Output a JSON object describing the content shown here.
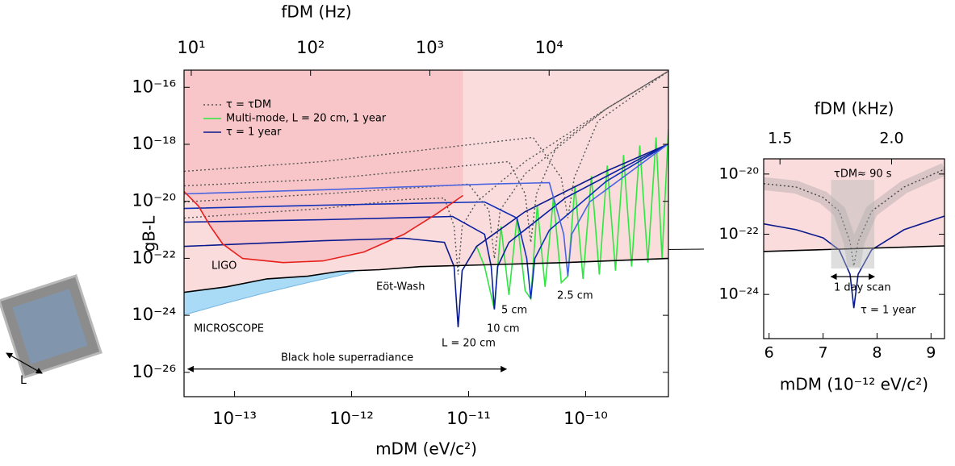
{
  "chart_data": [
    {
      "type": "line",
      "xlabel": "mDM (eV/c²)",
      "x2label": "fDM (Hz)",
      "ylabel": "gB-L",
      "xscale": "log",
      "x2scale": "log",
      "yscale": "log",
      "xlim": [
        3.7e-14,
        5.1e-10
      ],
      "xticks": [
        {
          "value": 1e-13,
          "label": "10⁻¹³"
        },
        {
          "value": 1e-12,
          "label": "10⁻¹²"
        },
        {
          "value": 1e-11,
          "label": "10⁻¹¹"
        },
        {
          "value": 1e-10,
          "label": "10⁻¹⁰"
        }
      ],
      "x2lim": [
        8.7,
        100000
      ],
      "x2ticks": [
        {
          "value": 10,
          "label": "10¹"
        },
        {
          "value": 100,
          "label": "10²"
        },
        {
          "value": 1000,
          "label": "10³"
        },
        {
          "value": 10000,
          "label": "10⁴"
        }
      ],
      "ylim": [
        1.4e-27,
        4e-16
      ],
      "yticks": [
        {
          "value": 1e-26,
          "label": "10⁻²⁶"
        },
        {
          "value": 1e-24,
          "label": "10⁻²⁴"
        },
        {
          "value": 1e-22,
          "label": "10⁻²²"
        },
        {
          "value": 1e-20,
          "label": "10⁻²⁰"
        },
        {
          "value": 1e-18,
          "label": "10⁻¹⁸"
        },
        {
          "value": 1e-16,
          "label": "10⁻¹⁶"
        }
      ],
      "legend": "upper left",
      "series": [
        {
          "name": "τ = τDM",
          "color": "#555555",
          "style": "dotted",
          "x": [
            3.7e-14,
            5.7e-13,
            2.81e-12,
            6.21e-12,
            7.52e-12,
            8.13e-12,
            8.81e-12,
            1.17e-11,
            3.04e-11,
            1.49e-10,
            5.1e-10
          ],
          "values": [
            2.6e-21,
            5.6e-21,
            1.15e-20,
            1.31e-20,
            1.34e-21,
            2.7e-23,
            1.34e-21,
            9.5e-21,
            2.48e-19,
            1.72e-17,
            3.7e-16
          ]
        },
        {
          "color": "#555555",
          "style": "dotted",
          "x": [
            3.7e-14,
            5.7e-13,
            1e-11,
            1.49e-11,
            1.66e-11,
            1.86e-11,
            3.04e-11,
            1.49e-10,
            5.1e-10
          ],
          "values": [
            9.5e-21,
            1.82e-20,
            4e-20,
            4.9e-21,
            9.9e-23,
            4.9e-21,
            9.3e-20,
            1.72e-17,
            3.7e-16
          ]
        },
        {
          "color": "#555555",
          "style": "dotted",
          "x": [
            3.7e-14,
            5.7e-13,
            2.21e-11,
            3.04e-11,
            3.4e-11,
            3.8e-11,
            5.7e-11,
            1.49e-10,
            5.1e-10
          ],
          "values": [
            3.5e-20,
            5.9e-20,
            2.48e-19,
            1.82e-20,
            3.6e-22,
            1.82e-20,
            9.1e-19,
            1.72e-17,
            3.7e-16
          ]
        },
        {
          "color": "#555555",
          "style": "dotted",
          "x": [
            3.7e-14,
            5.7e-13,
            3.56e-11,
            6.2e-11,
            7.05e-11,
            8e-11,
            1.27e-10,
            5.1e-10
          ],
          "values": [
            1.13e-19,
            2.48e-19,
            1.75e-18,
            6.7e-20,
            2.6e-21,
            6.7e-20,
            6.5e-18,
            3.7e-16
          ]
        },
        {
          "name": "Multi-mode, L = 20 cm, 1 year",
          "color": "#2ee840",
          "style": "solid",
          "x": [
            1.17e-11,
            1.37e-11,
            1.66e-11,
            1.89e-11,
            2.21e-11,
            2.59e-11,
            3.04e-11,
            3.4e-11,
            3.86e-11,
            4.5e-11,
            5.3e-11,
            6.2e-11,
            7.05e-11,
            8.1e-11,
            9.5e-11,
            1.12e-10,
            1.31e-10,
            1.53e-10,
            1.8e-10,
            2.11e-10,
            2.47e-10,
            2.9e-10,
            3.4e-10,
            4e-10,
            4.5e-10,
            5.1e-10
          ],
          "values": [
            2.6e-22,
            5.1e-23,
            1.62e-24,
            1.34e-21,
            5.2e-24,
            2.6e-21,
            7.3e-24,
            3.8e-24,
            6.9e-21,
            1e-23,
            1.31e-20,
            1.4e-23,
            2.35e-23,
            3.5e-20,
            1.9e-23,
            7.7e-20,
            2.7e-23,
            1.79e-19,
            3.7e-23,
            4.2e-19,
            5.1e-23,
            9.1e-19,
            7.1e-23,
            1.75e-18,
            9.9e-23,
            3.4e-18
          ]
        },
        {
          "name": "τ = 1 year",
          "color": "#0a1a8c",
          "style": "solid",
          "x": [
            3.73e-14,
            1.17e-13,
            5.74e-13,
            2.81e-12,
            6.21e-12,
            7.52e-12,
            8.13e-12,
            8.81e-12,
            1.17e-11,
            3.04e-11,
            1.49e-10,
            5.13e-10
          ],
          "values": [
            2.62e-22,
            3.19e-22,
            4.15e-22,
            5.05e-22,
            3.64e-22,
            5.14e-23,
            3.85e-25,
            3.71e-23,
            2.62e-22,
            4.34e-21,
            1.13e-19,
            1.04e-18
          ]
        },
        {
          "color": "#0a1fa0",
          "style": "solid",
          "x": [
            3.7e-14,
            5.7e-13,
            7.3e-12,
            1.37e-11,
            1.56e-11,
            1.66e-11,
            1.77e-11,
            2.21e-11,
            6.7e-11,
            5.1e-10
          ],
          "values": [
            1.86e-21,
            2.26e-21,
            2.93e-21,
            6.98e-22,
            5.1e-23,
            1.62e-24,
            5.1e-23,
            3.6e-22,
            1.31e-20,
            1.04e-18
          ]
        },
        {
          "color": "#1030b8",
          "style": "solid",
          "x": [
            3.7e-14,
            5.7e-13,
            1.37e-11,
            2.59e-11,
            3.14e-11,
            3.4e-11,
            3.68e-11,
            4.9e-11,
            1.49e-10,
            5.1e-10
          ],
          "values": [
            5.6e-21,
            7.3e-21,
            9.5e-21,
            2.58e-21,
            9.9e-23,
            3.8e-24,
            9.9e-23,
            9.7e-22,
            4.9e-20,
            1.04e-18
          ]
        },
        {
          "color": "#4a64e0",
          "style": "solid",
          "x": [
            3.7e-14,
            5.7e-13,
            1.37e-11,
            4.9e-11,
            6.5e-11,
            7.05e-11,
            7.6e-11,
            1.08e-10,
            5.1e-10
          ],
          "values": [
            1.82e-20,
            2.53e-20,
            4e-20,
            4.5e-20,
            7e-22,
            2.35e-23,
            7e-22,
            9.5e-21,
            1.04e-18
          ]
        }
      ],
      "constraints": [
        {
          "label": "Eöt-Wash",
          "color": "#000000",
          "x": [
            3.7e-14,
            8.5e-14,
            1.89e-13,
            4.2e-13,
            7.9e-13,
            1.74e-12,
            3.86e-12,
            1.37e-11,
            6.7e-11,
            5.1e-10
          ],
          "values": [
            6.4e-24,
            1e-23,
            1.9e-23,
            2.35e-23,
            3.5e-23,
            4e-23,
            5.1e-23,
            5.9e-23,
            7.1e-23,
            9.9e-23
          ]
        },
        {
          "label": "LIGO",
          "color": "#e8201c",
          "x": [
            3.7e-14,
            4.9e-14,
            6.2e-14,
            7.9e-14,
            1.17e-13,
            2.6e-13,
            5.7e-13,
            1.27e-12,
            2.81e-12,
            5.3e-12,
            8.95e-12
          ],
          "values": [
            2.22e-20,
            6.9e-21,
            1.34e-21,
            3.2e-22,
            9.9e-23,
            7.1e-23,
            8.1e-23,
            1.66e-22,
            7e-22,
            3.6e-21,
            1.6e-20
          ]
        },
        {
          "label": "MICROSCOPE",
          "color": "#78b6e0",
          "fill": "#a9daf6",
          "x": [
            3.7e-14,
            8.5e-14,
            1.89e-13,
            4.2e-13,
            7.9e-13,
            1.08e-12
          ],
          "values": [
            1.03e-24,
            2.7e-24,
            6.4e-24,
            1.4e-23,
            2.5e-23,
            3.5e-23
          ]
        }
      ],
      "annotations": [
        "L = 20 cm",
        "10 cm",
        "5 cm",
        "2.5 cm"
      ],
      "range_annotation": {
        "text": "Black hole superradiance",
        "x": [
          4e-14,
          2.1e-11
        ],
        "y": 1.3e-26
      }
    },
    {
      "type": "line",
      "xlabel": "mDM (10⁻¹² eV/c²)",
      "x2label": "fDM (kHz)",
      "xscale": "linear",
      "x2scale": "linear",
      "yscale": "log",
      "xlim": [
        5.9,
        9.25
      ],
      "xticks": [
        6,
        7,
        8,
        9
      ],
      "x2lim": [
        1.427,
        2.237
      ],
      "x2ticks": [
        1.5,
        {
          "value": 2,
          "label": "2.0"
        }
      ],
      "ylim": [
        3.4e-26,
        3.2e-20
      ],
      "yticks": [
        {
          "value": 1e-24,
          "label": "10⁻²⁴"
        },
        {
          "value": 1e-22,
          "label": "10⁻²²"
        },
        {
          "value": 1e-20,
          "label": "10⁻²⁰"
        }
      ],
      "series": [
        {
          "color": "#444444",
          "style": "dotted",
          "band": true,
          "x": [
            5.9,
            6.5,
            7.0,
            7.3,
            7.5,
            7.57,
            7.65,
            7.9,
            8.5,
            9.25
          ],
          "values": [
            4.8e-21,
            3.7e-21,
            1.67e-21,
            5.8e-22,
            5.6e-23,
            8.8e-24,
            5.6e-23,
            5.8e-22,
            3.7e-21,
            1.45e-20
          ]
        },
        {
          "color": "#0a1a8c",
          "style": "solid",
          "x": [
            5.9,
            6.5,
            7.0,
            7.3,
            7.5,
            7.57,
            7.65,
            7.9,
            8.5,
            9.25
          ],
          "values": [
            2.2e-22,
            1.41e-22,
            7.6e-23,
            3e-23,
            4.7e-24,
            3.5e-25,
            4.7e-24,
            3e-23,
            1.41e-22,
            4e-22
          ]
        }
      ],
      "constraints": [
        {
          "color": "#000000",
          "x": [
            5.9,
            9.25
          ],
          "values": [
            2.67e-23,
            4.1e-23
          ]
        }
      ],
      "annotations": [
        "τDM≈ 90 s",
        "τ = 1 year"
      ],
      "range_annotation": {
        "text": "1 day scan",
        "x": [
          7.15,
          7.95
        ],
        "y": 3.9e-24
      }
    }
  ],
  "device": {
    "label": "L"
  }
}
